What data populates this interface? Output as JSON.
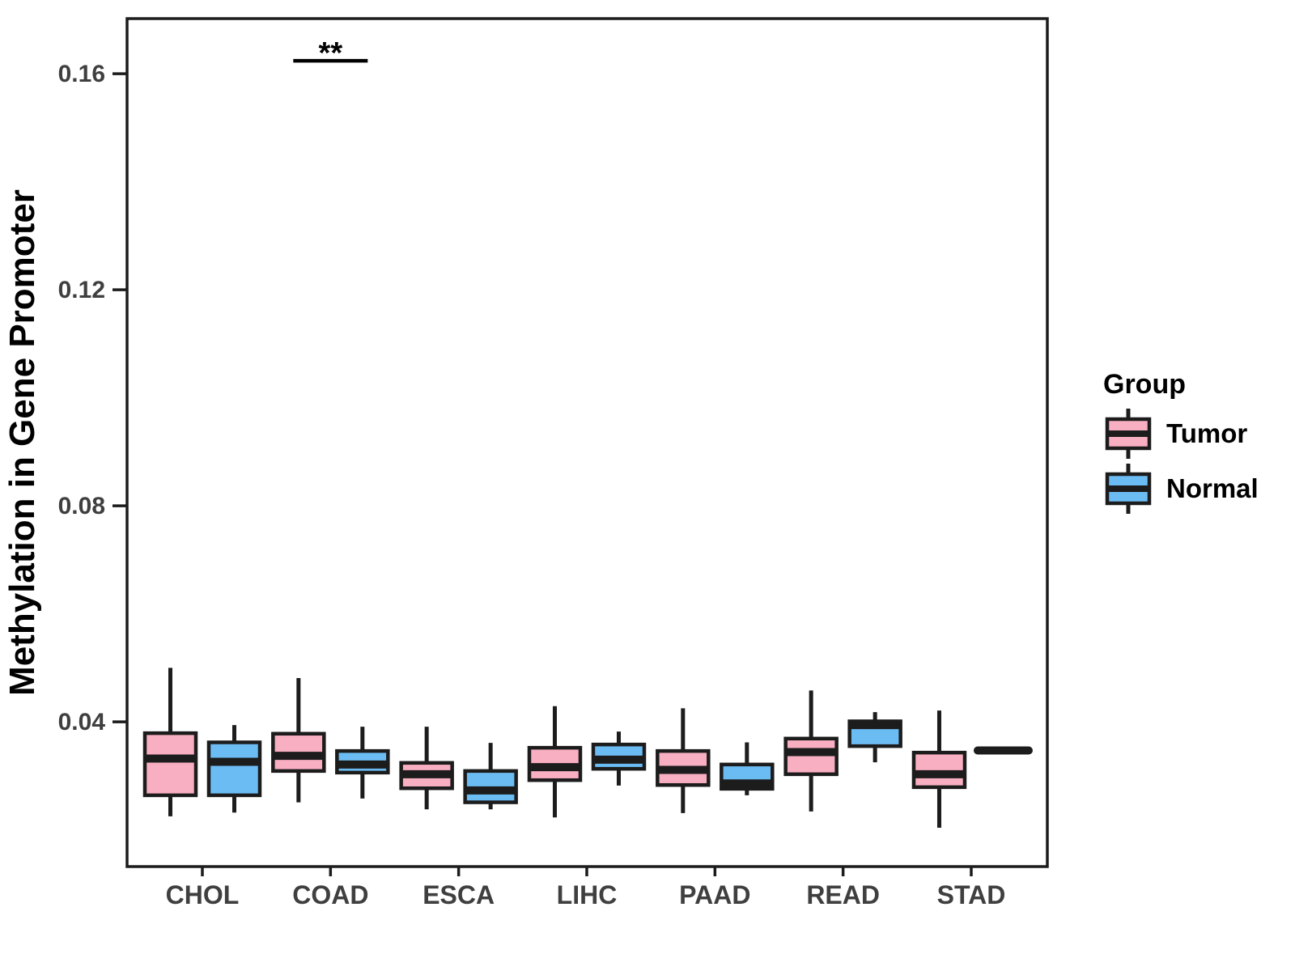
{
  "chart_data": {
    "type": "boxplot",
    "title": "",
    "xlabel": "",
    "ylabel": "Methylation in Gene Promoter",
    "categories": [
      "CHOL",
      "COAD",
      "ESCA",
      "LIHC",
      "PAAD",
      "READ",
      "STAD"
    ],
    "y_axis": {
      "ticks": [
        {
          "value": 0.04,
          "label": "0.04"
        },
        {
          "value": 0.08,
          "label": "0.08"
        },
        {
          "value": 0.12,
          "label": "0.12"
        },
        {
          "value": 0.16,
          "label": "0.16"
        }
      ],
      "range": [
        0.0132,
        0.1702
      ],
      "grid": false
    },
    "legend": {
      "title": "Group",
      "position": "right",
      "entries": [
        {
          "label": "Tumor",
          "color": "#F9AFC2"
        },
        {
          "label": "Normal",
          "color": "#6CBCF4"
        }
      ]
    },
    "series": [
      {
        "name": "Tumor",
        "color": "#F9AFC2",
        "boxes": [
          {
            "category": "CHOL",
            "min": 0.0225,
            "q1": 0.0264,
            "median": 0.0332,
            "q3": 0.0379,
            "max": 0.05
          },
          {
            "category": "COAD",
            "min": 0.0251,
            "q1": 0.0309,
            "median": 0.0337,
            "q3": 0.0378,
            "max": 0.0481
          },
          {
            "category": "ESCA",
            "min": 0.0238,
            "q1": 0.0277,
            "median": 0.0303,
            "q3": 0.0324,
            "max": 0.0391
          },
          {
            "category": "LIHC",
            "min": 0.0223,
            "q1": 0.0292,
            "median": 0.0316,
            "q3": 0.0352,
            "max": 0.0429
          },
          {
            "category": "PAAD",
            "min": 0.0231,
            "q1": 0.0283,
            "median": 0.0311,
            "q3": 0.0346,
            "max": 0.0425
          },
          {
            "category": "READ",
            "min": 0.0234,
            "q1": 0.0303,
            "median": 0.0344,
            "q3": 0.0369,
            "max": 0.0458
          },
          {
            "category": "STAD",
            "min": 0.0204,
            "q1": 0.0279,
            "median": 0.0303,
            "q3": 0.0343,
            "max": 0.0421
          }
        ]
      },
      {
        "name": "Normal",
        "color": "#6CBCF4",
        "boxes": [
          {
            "category": "CHOL",
            "min": 0.0232,
            "q1": 0.0264,
            "median": 0.0326,
            "q3": 0.0362,
            "max": 0.0394
          },
          {
            "category": "COAD",
            "min": 0.0258,
            "q1": 0.0306,
            "median": 0.0321,
            "q3": 0.0346,
            "max": 0.0391
          },
          {
            "category": "ESCA",
            "min": 0.0238,
            "q1": 0.0251,
            "median": 0.0273,
            "q3": 0.0309,
            "max": 0.0361
          },
          {
            "category": "LIHC",
            "min": 0.0282,
            "q1": 0.0313,
            "median": 0.033,
            "q3": 0.0358,
            "max": 0.0382
          },
          {
            "category": "PAAD",
            "min": 0.0264,
            "q1": 0.0276,
            "median": 0.0286,
            "q3": 0.0321,
            "max": 0.0362
          },
          {
            "category": "READ",
            "min": 0.0325,
            "q1": 0.0355,
            "median": 0.0394,
            "q3": 0.0401,
            "max": 0.0418
          },
          {
            "category": "STAD",
            "min": 0.0347,
            "q1": 0.0347,
            "median": 0.0347,
            "q3": 0.0347,
            "max": 0.0347
          }
        ]
      }
    ],
    "annotations": [
      {
        "type": "significance",
        "category": "COAD",
        "label": "**",
        "line_y": 0.1624
      }
    ],
    "style": {
      "box_border_color": "#1C1C1C",
      "panel_border_color": "#1C1C1C",
      "axis_text_color": "#3F3F3F",
      "background": "#FFFFFF"
    }
  }
}
